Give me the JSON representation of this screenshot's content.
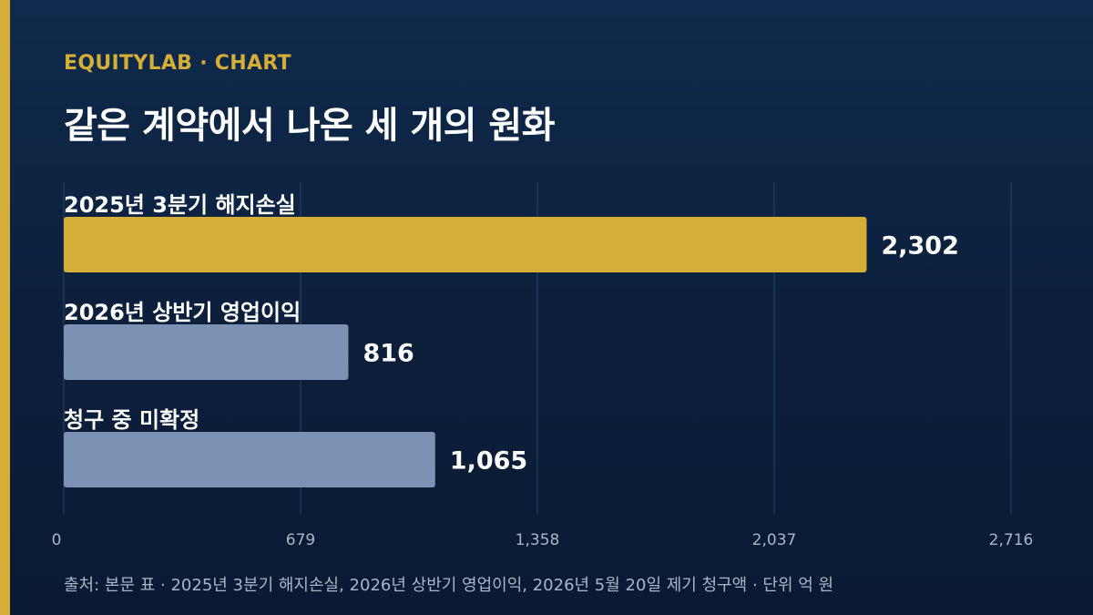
{
  "header": {
    "brand": "EQUITYLAB · CHART",
    "title": "같은 계약에서 나온 세 개의 원화"
  },
  "colors": {
    "accent": "#d4ae37",
    "bar_primary": "#d4ae37",
    "bar_secondary": "#7b92b4"
  },
  "chart_data": {
    "type": "bar",
    "orientation": "horizontal",
    "categories": [
      "2025년 3분기 해지손실",
      "2026년 상반기 영업이익",
      "청구 중 미확정"
    ],
    "values": [
      2302,
      816,
      1065
    ],
    "value_labels": [
      "2,302",
      "816",
      "1,065"
    ],
    "xlim": [
      0,
      2716
    ],
    "ticks": [
      0,
      679,
      1358,
      2037,
      2716
    ],
    "tick_labels": [
      "0",
      "679",
      "1,358",
      "2,037",
      "2,716"
    ],
    "highlight_index": 0,
    "grid": true,
    "title": "같은 계약에서 나온 세 개의 원화"
  },
  "footer": {
    "source": "출처: 본문 표 · 2025년 3분기 해지손실, 2026년 상반기 영업이익, 2026년 5월 20일 제기 청구액 · 단위 억 원"
  }
}
